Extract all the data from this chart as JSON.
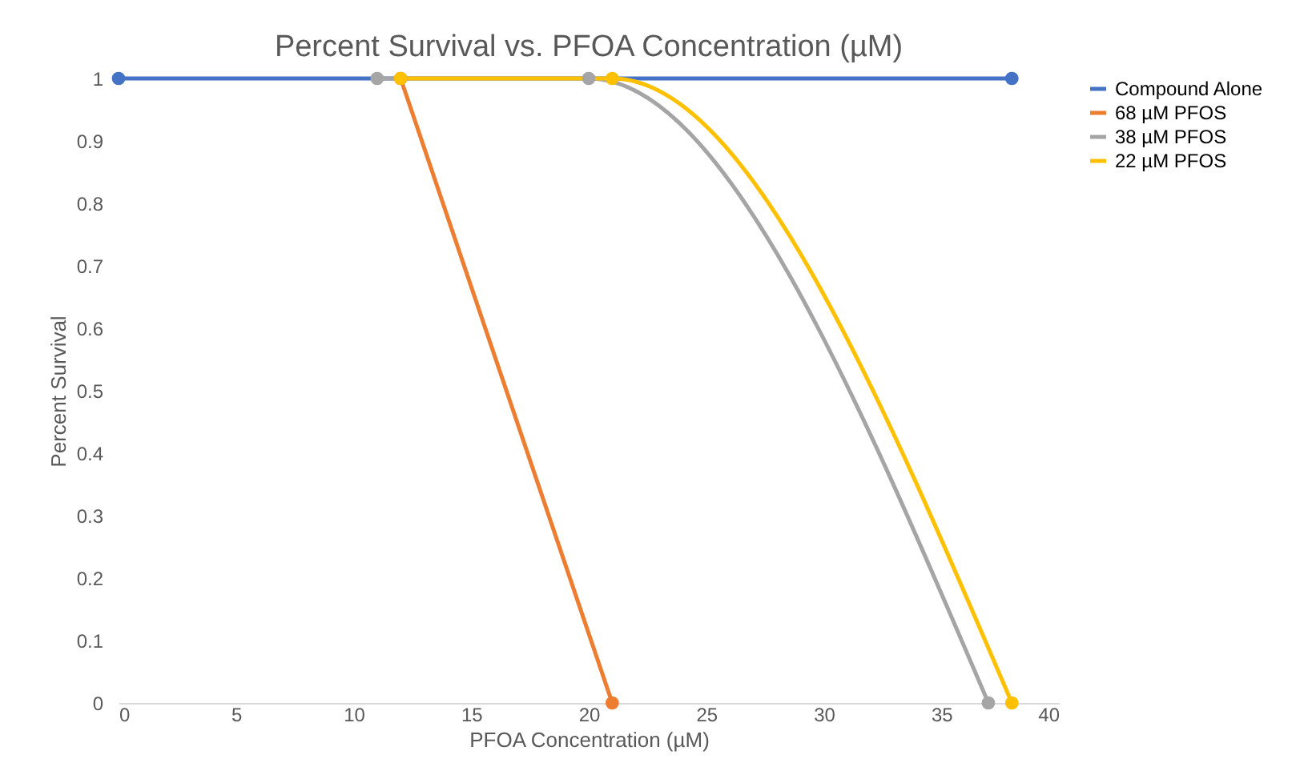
{
  "chart_data": {
    "type": "line",
    "title": "Percent Survival vs. PFOA Concentration (µM)",
    "xlabel": "PFOA Concentration (µM)",
    "ylabel": "Percent Survival",
    "xlim": [
      0,
      40
    ],
    "xticks": [
      0,
      5,
      10,
      15,
      20,
      25,
      30,
      35,
      40
    ],
    "ylim": [
      0,
      1
    ],
    "yticks": [
      0,
      0.1,
      0.2,
      0.3,
      0.4,
      0.5,
      0.6,
      0.7,
      0.8,
      0.9,
      1
    ],
    "grid": false,
    "legend": "right",
    "marker": "circle",
    "line_style": "solid",
    "series": [
      {
        "name": "Compound Alone",
        "color": "#4472c4",
        "x": [
          0,
          38
        ],
        "values": [
          1,
          1
        ]
      },
      {
        "name": "68 µM PFOS",
        "color": "#ed7d31",
        "x": [
          12,
          21
        ],
        "values": [
          1,
          0
        ]
      },
      {
        "name": "38 µM PFOS",
        "color": "#a5a5a5",
        "x": [
          11,
          20,
          37
        ],
        "values": [
          1,
          1,
          0
        ]
      },
      {
        "name": "22 µM PFOS",
        "color": "#ffc000",
        "x": [
          12,
          21,
          38
        ],
        "values": [
          1,
          1,
          0
        ]
      }
    ]
  }
}
